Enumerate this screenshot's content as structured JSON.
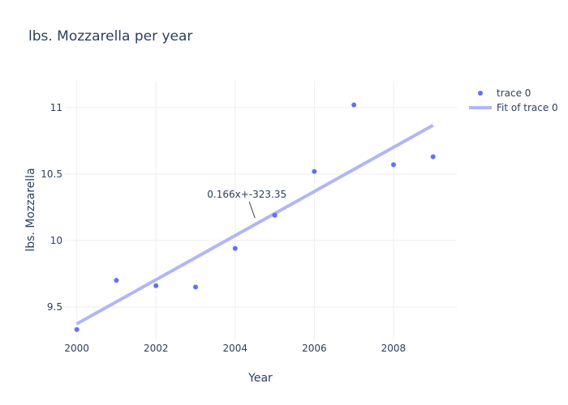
{
  "chart_data": {
    "type": "scatter",
    "title": "lbs. Mozzarella per year",
    "xlabel": "Year",
    "ylabel": "lbs. Mozzarella",
    "xlim": [
      1999.7,
      2009.6
    ],
    "ylim": [
      9.25,
      11.2
    ],
    "xticks": [
      2000,
      2002,
      2004,
      2006,
      2008
    ],
    "yticks": [
      9.5,
      10,
      10.5,
      11
    ],
    "grid": true,
    "legend_position": "top-right",
    "series": [
      {
        "name": "trace 0",
        "mode": "markers",
        "color": "#636efa",
        "x": [
          2000,
          2001,
          2002,
          2003,
          2004,
          2005,
          2006,
          2007,
          2008,
          2009
        ],
        "y": [
          9.33,
          9.7,
          9.66,
          9.65,
          9.94,
          10.19,
          10.52,
          11.02,
          10.57,
          10.63
        ]
      },
      {
        "name": "Fit of trace 0",
        "mode": "lines",
        "color": "#b0b6f6",
        "x": [
          2000,
          2009
        ],
        "y": [
          9.373,
          10.867
        ]
      }
    ],
    "annotation": {
      "text": "0.166x+-323.35",
      "x": 2004.5,
      "y": 10.17
    }
  }
}
